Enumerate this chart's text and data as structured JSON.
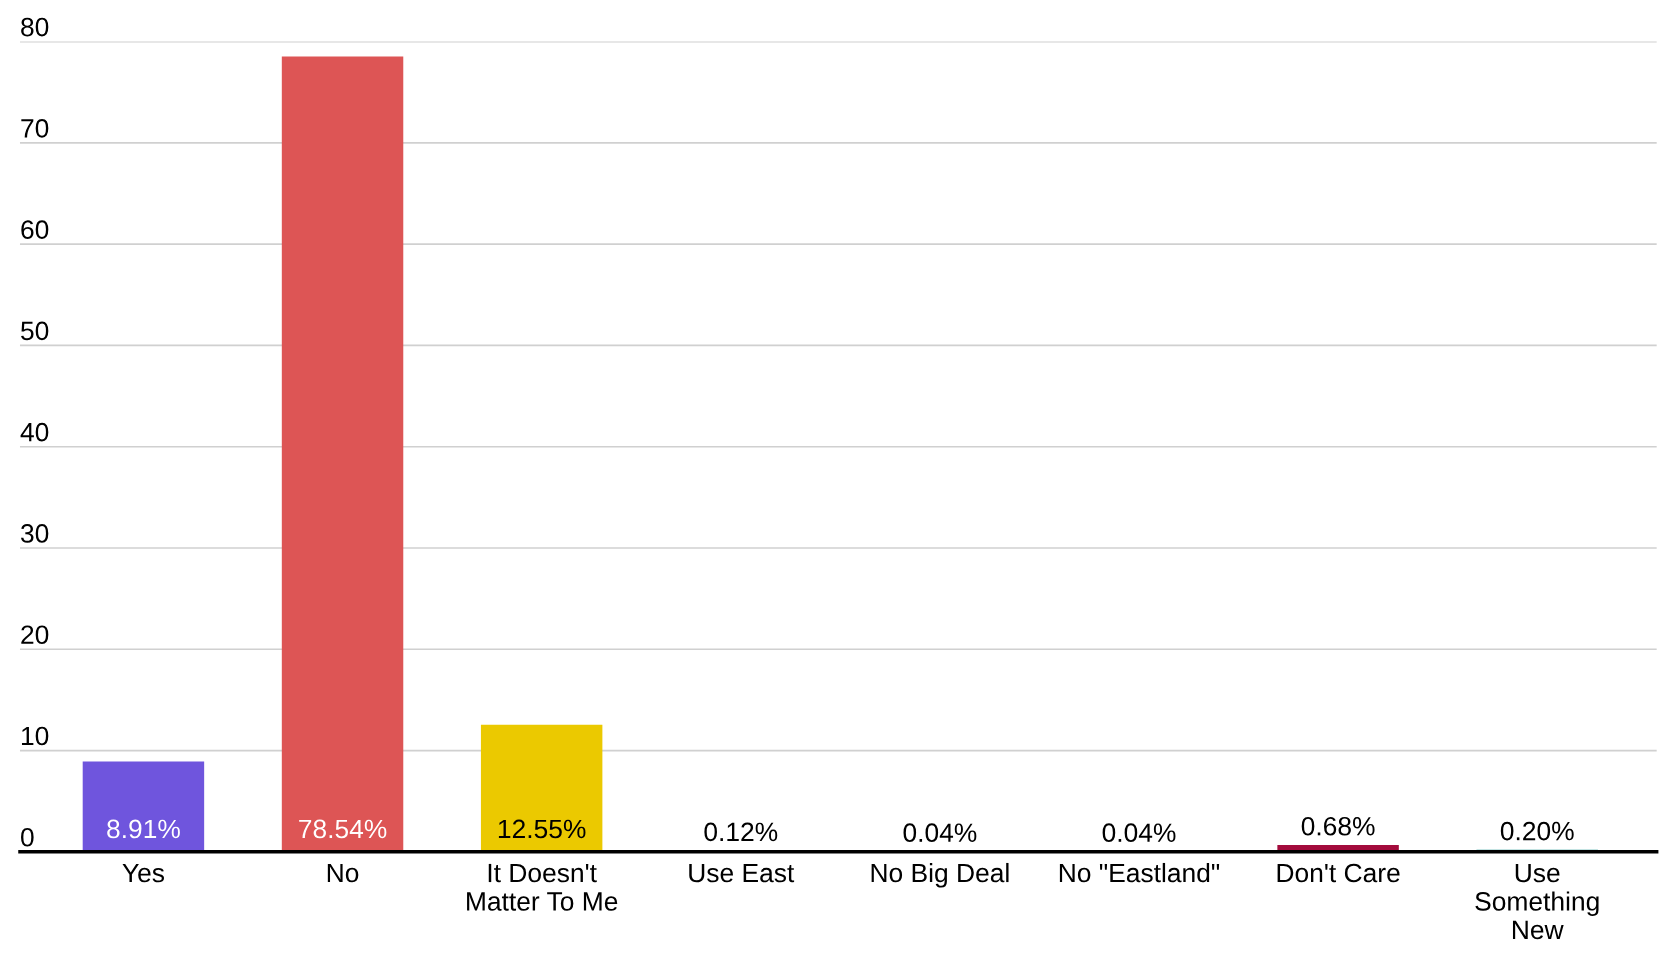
{
  "chart_data": {
    "type": "bar",
    "categories": [
      "Yes",
      "No",
      "It Doesn't\nMatter To Me",
      "Use East",
      "No Big Deal",
      "No \"Eastland\"",
      "Don't Care",
      "Use\nSomething\nNew"
    ],
    "values": [
      8.91,
      78.54,
      12.55,
      0.12,
      0.04,
      0.04,
      0.68,
      0.2
    ],
    "value_labels": [
      "8.91%",
      "78.54%",
      "12.55%",
      "0.12%",
      "0.04%",
      "0.04%",
      "0.68%",
      "0.20%"
    ],
    "colors": [
      "#6f55dd",
      "#dd5555",
      "#ebc900",
      "#e8710a",
      "#4285f4",
      "#34a853",
      "#a30b3c",
      "#138f8a"
    ],
    "ylim": [
      0,
      80
    ],
    "yticks": [
      0,
      10,
      20,
      30,
      40,
      50,
      60,
      70,
      80
    ],
    "grid": "y"
  }
}
